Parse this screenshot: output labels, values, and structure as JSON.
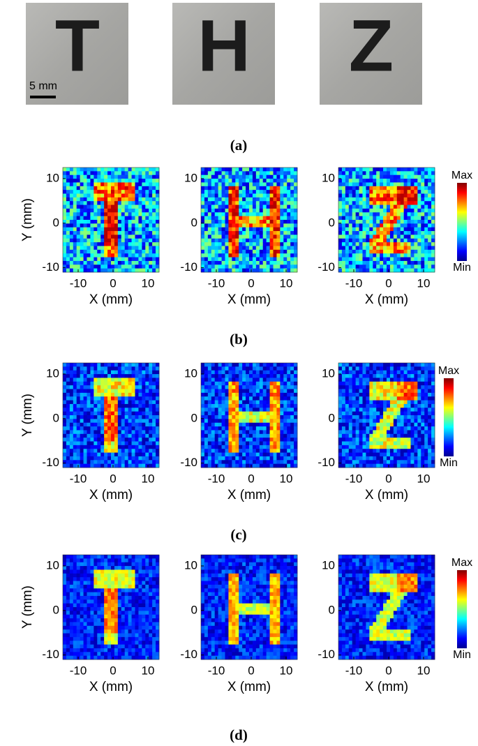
{
  "photos": {
    "letters": [
      "T",
      "H",
      "Z"
    ],
    "scale_bar": "5 mm",
    "label": "(a)"
  },
  "panels": [
    {
      "label": "(b)"
    },
    {
      "label": "(c)"
    },
    {
      "label": "(d)"
    }
  ],
  "axes": {
    "xlabel": "X (mm)",
    "ylabel": "Y (mm)",
    "xticks": [
      -10,
      0,
      10
    ],
    "yticks": [
      10,
      0,
      -10
    ],
    "xlim": [
      -14.4,
      13.2
    ],
    "ylim": [
      -11,
      12.5
    ]
  },
  "colorbar": {
    "max": "Max",
    "min": "Min"
  }
}
